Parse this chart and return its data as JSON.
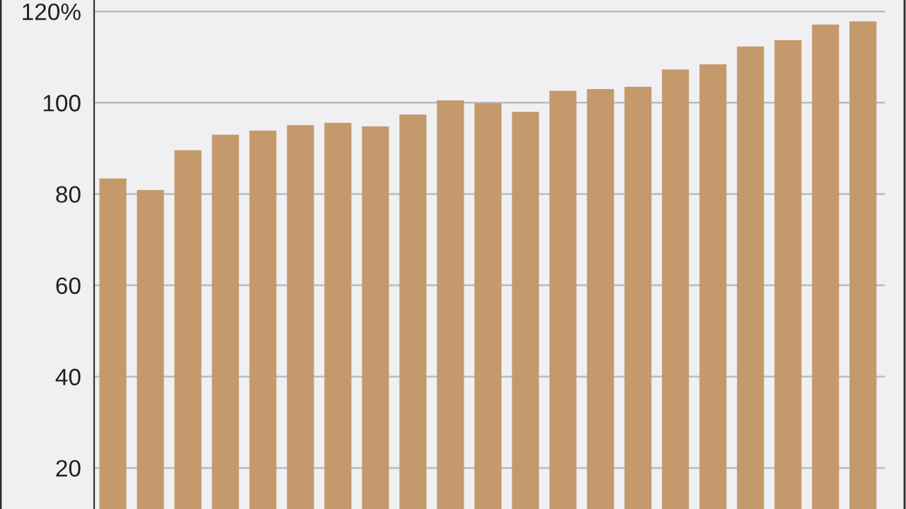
{
  "chart_data": {
    "type": "bar",
    "categories": [
      null,
      null,
      null,
      null,
      null,
      null,
      null,
      null,
      null,
      null,
      null,
      null,
      null,
      null,
      null,
      null,
      null,
      null,
      null,
      null,
      null
    ],
    "values": [
      83.4,
      80.9,
      89.6,
      93.0,
      93.9,
      95.1,
      95.6,
      94.8,
      97.4,
      100.5,
      99.9,
      98.0,
      102.6,
      103.0,
      103.5,
      107.3,
      108.4,
      112.3,
      113.7,
      117.1,
      117.8
    ],
    "color": "#c4996b",
    "ylim": [
      11,
      122.5
    ],
    "yticks": [
      20,
      40,
      60,
      80,
      100,
      {
        "value": 120,
        "label": "120%"
      }
    ],
    "grid": "y",
    "tick_labels": "y"
  }
}
